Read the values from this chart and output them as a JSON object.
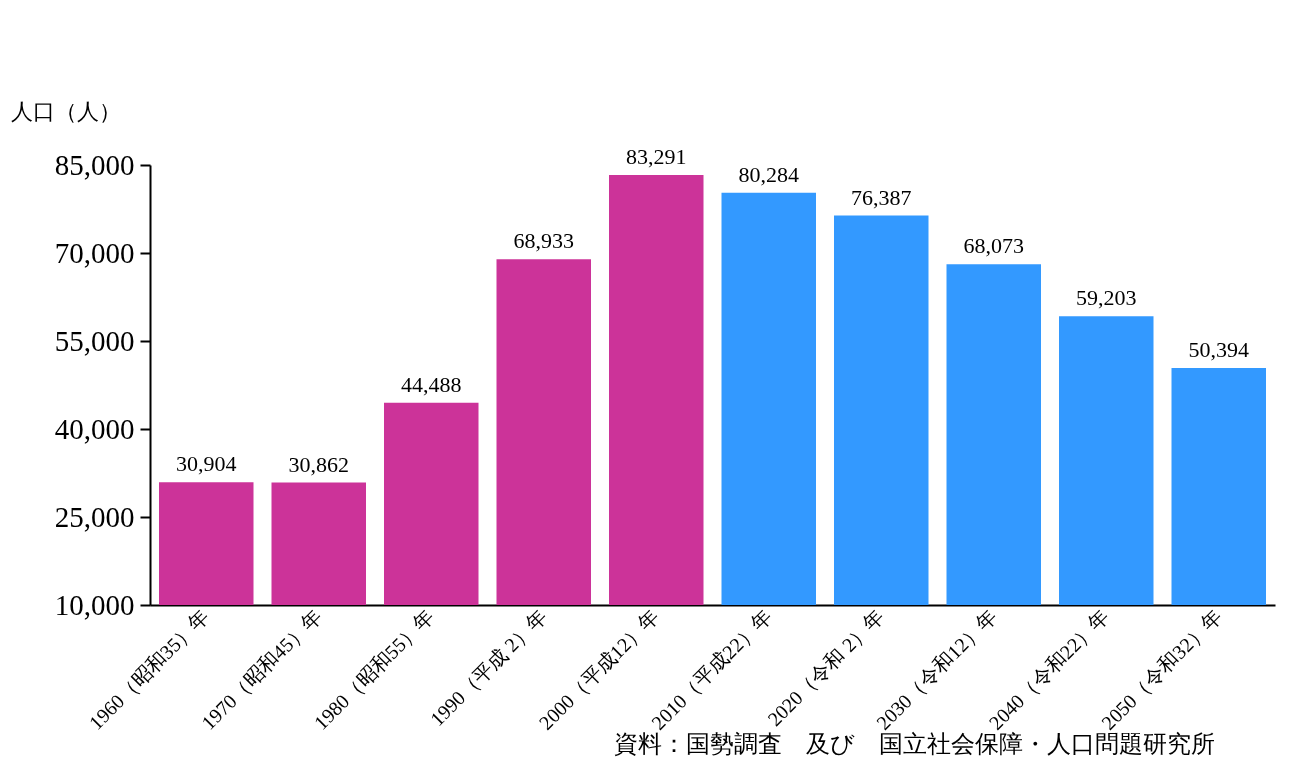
{
  "chart_data": {
    "type": "bar",
    "ylabel": "人口（人）",
    "categories": [
      "1960（昭和35）年",
      "1970（昭和45）年",
      "1980（昭和55）年",
      "1990（平成 2）年",
      "2000（平成12）年",
      "2010（平成22）年",
      "2020（令和 2）年",
      "2030（令和12）年",
      "2040（令和22）年",
      "2050（令和32）年"
    ],
    "values": [
      30904,
      30862,
      44488,
      68933,
      83291,
      80284,
      76387,
      68073,
      59203,
      50394
    ],
    "value_labels": [
      "30,904",
      "30,862",
      "44,488",
      "68,933",
      "83,291",
      "80,284",
      "76,387",
      "68,073",
      "59,203",
      "50,394"
    ],
    "colors": [
      "#cc3399",
      "#cc3399",
      "#cc3399",
      "#cc3399",
      "#cc3399",
      "#3399ff",
      "#3399ff",
      "#3399ff",
      "#3399ff",
      "#3399ff"
    ],
    "ylim": [
      10000,
      85000
    ],
    "yticks": [
      {
        "value": 10000,
        "label": "10,000"
      },
      {
        "value": 25000,
        "label": "25,000"
      },
      {
        "value": 40000,
        "label": "40,000"
      },
      {
        "value": 55000,
        "label": "55,000"
      },
      {
        "value": 70000,
        "label": "70,000"
      },
      {
        "value": 85000,
        "label": "85,000"
      }
    ],
    "grid": false,
    "annotations": [
      "資料：国勢調査　及び　国立社会保障・人口問題研究所"
    ]
  }
}
